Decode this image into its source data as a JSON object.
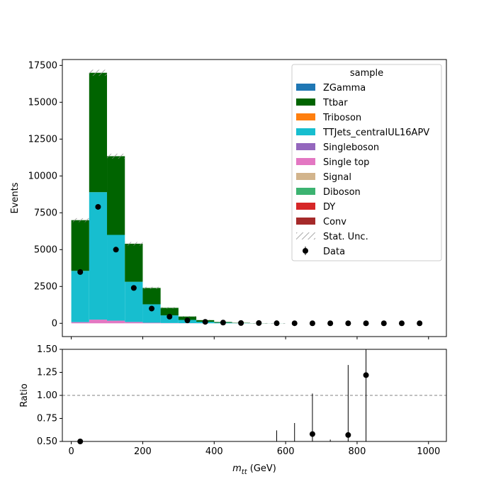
{
  "chart_data": {
    "type": "bar",
    "stacked": true,
    "bin_edges": [
      0,
      50,
      100,
      150,
      200,
      250,
      300,
      350,
      400,
      450,
      500,
      550,
      600,
      650,
      700,
      750,
      800,
      850,
      900,
      950,
      1000
    ],
    "xlabel": "m_{tt} (GeV)",
    "xlim": [
      -25,
      1050
    ],
    "xticks": [
      0,
      200,
      400,
      600,
      800,
      1000
    ],
    "main": {
      "ylabel": "Events",
      "ylim": [
        -900,
        17900
      ],
      "yticks": [
        0,
        2500,
        5000,
        7500,
        10000,
        12500,
        15000,
        17500
      ],
      "series": [
        {
          "name": "Single top",
          "color": "#e377c2",
          "values": [
            80,
            250,
            180,
            90,
            40,
            20,
            10,
            5,
            0,
            0,
            0,
            0,
            0,
            0,
            0,
            0,
            0,
            0,
            0,
            0
          ]
        },
        {
          "name": "TTJets_centralUL16APV",
          "color": "#17becf",
          "values": [
            3480,
            8650,
            5820,
            2730,
            1250,
            520,
            220,
            100,
            40,
            15,
            5,
            3,
            0,
            0,
            0,
            0,
            0,
            0,
            0,
            0
          ]
        },
        {
          "name": "Ttbar",
          "color": "#006400",
          "values": [
            3440,
            8100,
            5340,
            2580,
            1110,
            510,
            230,
            110,
            50,
            20,
            8,
            3,
            0,
            0,
            0,
            0,
            0,
            0,
            0,
            0
          ]
        }
      ],
      "data": {
        "name": "Data",
        "values": [
          3480,
          7900,
          5000,
          2400,
          1000,
          450,
          200,
          100,
          50,
          20,
          20,
          5,
          3,
          2,
          2,
          1,
          1,
          1,
          1,
          1
        ]
      },
      "legend": {
        "title": "sample",
        "placement": "upper right",
        "entries": [
          {
            "label": "ZGamma",
            "color": "#1f77b4",
            "kind": "patch"
          },
          {
            "label": "Ttbar",
            "color": "#006400",
            "kind": "patch"
          },
          {
            "label": "Triboson",
            "color": "#ff7f0e",
            "kind": "patch"
          },
          {
            "label": "TTJets_centralUL16APV",
            "color": "#17becf",
            "kind": "patch"
          },
          {
            "label": "Singleboson",
            "color": "#9467bd",
            "kind": "patch"
          },
          {
            "label": "Single top",
            "color": "#e377c2",
            "kind": "patch"
          },
          {
            "label": "Signal",
            "color": "#d2b48c",
            "kind": "patch"
          },
          {
            "label": "Diboson",
            "color": "#3cb371",
            "kind": "patch"
          },
          {
            "label": "DY",
            "color": "#d62728",
            "kind": "patch"
          },
          {
            "label": "Conv",
            "color": "#a52a2a",
            "kind": "patch"
          },
          {
            "label": "Stat. Unc.",
            "color": "#888888",
            "kind": "hatch"
          },
          {
            "label": "Data",
            "color": "#000000",
            "kind": "errorbar"
          }
        ]
      }
    },
    "ratio": {
      "ylabel": "Ratio",
      "ylim": [
        0.5,
        1.5
      ],
      "yticks": [
        "0.50",
        "0.75",
        "1.00",
        "1.25",
        "1.50"
      ],
      "reference": 1.0,
      "points": [
        {
          "x": 25,
          "y": 0.5
        },
        {
          "x": 675,
          "y": 0.58
        },
        {
          "x": 775,
          "y": 0.57
        },
        {
          "x": 825,
          "y": 1.22
        }
      ],
      "errorbars": [
        {
          "x": 575,
          "low": 0.5,
          "high": 0.62
        },
        {
          "x": 625,
          "low": 0.5,
          "high": 0.7
        },
        {
          "x": 675,
          "low": 0.5,
          "high": 1.02
        },
        {
          "x": 725,
          "low": 0.5,
          "high": 0.52
        },
        {
          "x": 775,
          "low": 0.5,
          "high": 1.33
        },
        {
          "x": 825,
          "low": 0.5,
          "high": 1.5
        }
      ]
    }
  }
}
